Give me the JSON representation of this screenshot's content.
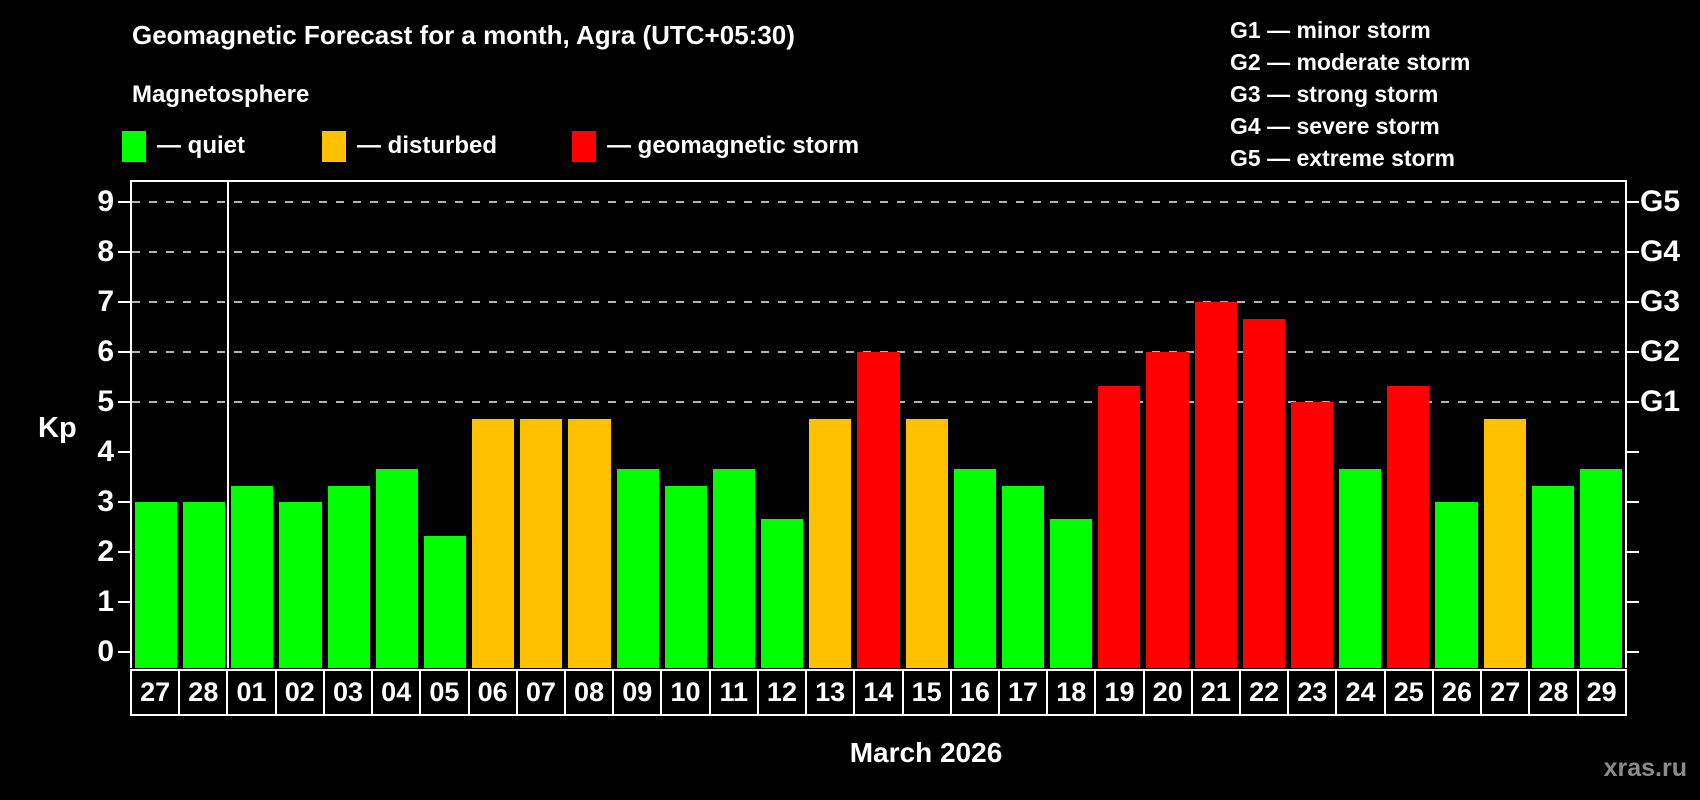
{
  "title": "Geomagnetic Forecast for a month, Agra (UTC+05:30)",
  "subtitle": "Magnetosphere",
  "watermark": "xras.ru",
  "legend": {
    "items": [
      {
        "id": "quiet",
        "label": "— quiet",
        "color": "#00ff00"
      },
      {
        "id": "disturbed",
        "label": "— disturbed",
        "color": "#ffc000"
      },
      {
        "id": "storm",
        "label": "— geomagnetic storm",
        "color": "#ff0000"
      }
    ]
  },
  "storm_scale": {
    "lines": [
      "G1 — minor storm",
      "G2 — moderate storm",
      "G3 — strong storm",
      "G4 — severe storm",
      "G5 — extreme storm"
    ]
  },
  "axes": {
    "y_label": "Kp",
    "kp_ticks": [
      "0",
      "1",
      "2",
      "3",
      "4",
      "5",
      "6",
      "7",
      "8",
      "9"
    ],
    "g_levels": [
      {
        "kp": 5,
        "label": "G1"
      },
      {
        "kp": 6,
        "label": "G2"
      },
      {
        "kp": 7,
        "label": "G3"
      },
      {
        "kp": 8,
        "label": "G4"
      },
      {
        "kp": 9,
        "label": "G5"
      }
    ],
    "x_caption": "March 2026"
  },
  "chart_data": {
    "type": "bar",
    "title": "Geomagnetic Forecast for a month, Agra (UTC+05:30)",
    "xlabel": "March 2026",
    "ylabel": "Kp",
    "ylim": [
      0,
      9.4
    ],
    "grid": "dashed horizontal gridlines at Kp 5-9 only",
    "gridlines_kp": [
      5,
      6,
      7,
      8,
      9
    ],
    "legend_position": "top-left",
    "month_separator_after_index": 1,
    "categories": [
      "27",
      "28",
      "01",
      "02",
      "03",
      "04",
      "05",
      "06",
      "07",
      "08",
      "09",
      "10",
      "11",
      "12",
      "13",
      "14",
      "15",
      "16",
      "17",
      "18",
      "19",
      "20",
      "21",
      "22",
      "23",
      "24",
      "25",
      "26",
      "27",
      "28",
      "29"
    ],
    "values": [
      3.0,
      3.0,
      3.33,
      3.0,
      3.33,
      3.67,
      2.33,
      4.67,
      4.67,
      4.67,
      3.67,
      3.33,
      3.67,
      2.67,
      4.67,
      6.0,
      4.67,
      3.67,
      3.33,
      2.67,
      5.33,
      6.0,
      7.0,
      6.67,
      5.0,
      3.67,
      5.33,
      3.0,
      4.67,
      3.33,
      3.67
    ],
    "states": [
      "quiet",
      "quiet",
      "quiet",
      "quiet",
      "quiet",
      "quiet",
      "quiet",
      "disturbed",
      "disturbed",
      "disturbed",
      "quiet",
      "quiet",
      "quiet",
      "quiet",
      "disturbed",
      "storm",
      "disturbed",
      "quiet",
      "quiet",
      "quiet",
      "storm",
      "storm",
      "storm",
      "storm",
      "storm",
      "quiet",
      "storm",
      "quiet",
      "disturbed",
      "quiet",
      "quiet"
    ],
    "colors": {
      "quiet": "#00ff00",
      "disturbed": "#ffc000",
      "storm": "#ff0000"
    }
  }
}
